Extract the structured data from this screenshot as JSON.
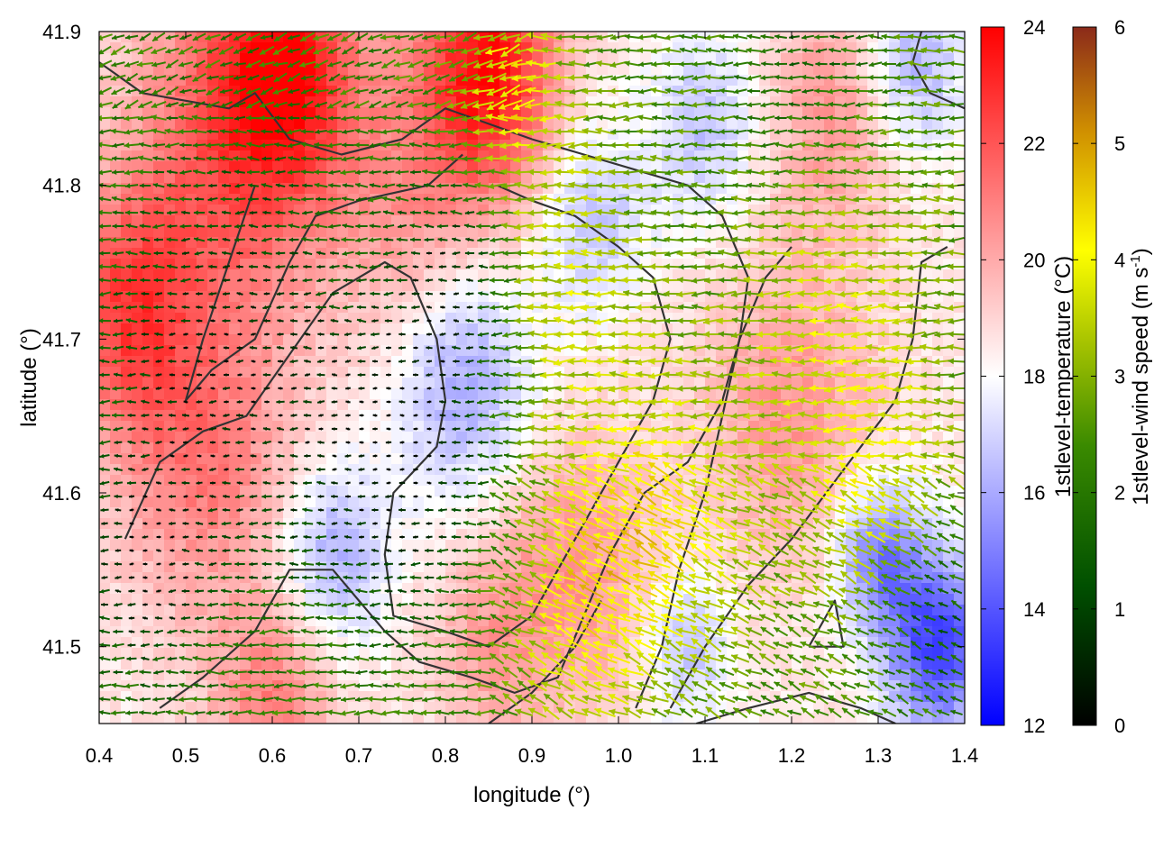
{
  "chart_data": {
    "type": "heatmap",
    "title": "",
    "xlabel": "longitude (°)",
    "ylabel": "latitude (°)",
    "xlim": [
      0.4,
      1.4
    ],
    "ylim": [
      41.45,
      41.9
    ],
    "x_ticks": [
      "0.4",
      "0.5",
      "0.6",
      "0.7",
      "0.8",
      "0.9",
      "1.0",
      "1.1",
      "1.2",
      "1.3",
      "1.4"
    ],
    "y_ticks": [
      "41.5",
      "41.6",
      "41.7",
      "41.8",
      "41.9"
    ],
    "temperature_colorbar": {
      "label": "1stlevel-temperature (°C)",
      "range": [
        12,
        24
      ],
      "ticks": [
        "12",
        "14",
        "16",
        "18",
        "20",
        "22",
        "24"
      ],
      "colors": [
        "#0000ff",
        "#ffffff",
        "#ff0000"
      ]
    },
    "wind_colorbar": {
      "label_prefix": "1stlevel-wind speed (m s",
      "label_exp": "-1",
      "label_suffix": ")",
      "range": [
        0,
        6
      ],
      "ticks": [
        "0",
        "1",
        "2",
        "3",
        "4",
        "5",
        "6"
      ],
      "colors": [
        "#000000",
        "#006400",
        "#90b000",
        "#ffff00",
        "#c88000",
        "#902020"
      ]
    },
    "grid": false,
    "legend": "right",
    "temperature_anomalies": [
      {
        "lon": 0.56,
        "lat": 41.83,
        "temp": 22.0,
        "r": 0.12
      },
      {
        "lon": 0.43,
        "lat": 41.72,
        "temp": 22.0,
        "r": 0.08
      },
      {
        "lon": 0.85,
        "lat": 41.88,
        "temp": 23.5,
        "r": 0.08
      },
      {
        "lon": 0.62,
        "lat": 41.88,
        "temp": 22.0,
        "r": 0.08
      },
      {
        "lon": 0.52,
        "lat": 41.62,
        "temp": 21.0,
        "r": 0.1
      },
      {
        "lon": 0.6,
        "lat": 41.46,
        "temp": 21.0,
        "r": 0.07
      },
      {
        "lon": 0.78,
        "lat": 41.78,
        "temp": 20.5,
        "r": 0.1
      },
      {
        "lon": 1.25,
        "lat": 41.85,
        "temp": 20.5,
        "r": 0.08
      },
      {
        "lon": 1.2,
        "lat": 41.65,
        "temp": 20.5,
        "r": 0.1
      },
      {
        "lon": 0.95,
        "lat": 41.55,
        "temp": 20.5,
        "r": 0.09
      },
      {
        "lon": 0.85,
        "lat": 41.5,
        "temp": 20.0,
        "r": 0.07
      },
      {
        "lon": 0.82,
        "lat": 41.68,
        "temp": 15.5,
        "r": 0.08
      },
      {
        "lon": 0.67,
        "lat": 41.56,
        "temp": 16.0,
        "r": 0.06
      },
      {
        "lon": 0.97,
        "lat": 41.78,
        "temp": 16.5,
        "r": 0.06
      },
      {
        "lon": 1.1,
        "lat": 41.84,
        "temp": 16.5,
        "r": 0.06
      },
      {
        "lon": 1.34,
        "lat": 41.88,
        "temp": 16.0,
        "r": 0.06
      },
      {
        "lon": 1.37,
        "lat": 41.5,
        "temp": 13.5,
        "r": 0.06
      },
      {
        "lon": 1.3,
        "lat": 41.56,
        "temp": 15.0,
        "r": 0.05
      },
      {
        "lon": 1.08,
        "lat": 41.5,
        "temp": 16.5,
        "r": 0.05
      }
    ],
    "wind_anomalies": [
      {
        "lon": 0.92,
        "lat": 41.74,
        "speed": 3.8,
        "r": 0.1
      },
      {
        "lon": 1.05,
        "lat": 41.58,
        "speed": 4.2,
        "r": 0.1
      },
      {
        "lon": 0.88,
        "lat": 41.86,
        "speed": 4.0,
        "r": 0.06
      },
      {
        "lon": 1.25,
        "lat": 41.72,
        "speed": 3.5,
        "r": 0.12
      },
      {
        "lon": 1.3,
        "lat": 41.6,
        "speed": 3.5,
        "r": 0.1
      },
      {
        "lon": 0.95,
        "lat": 41.52,
        "speed": 3.8,
        "r": 0.08
      },
      {
        "lon": 0.55,
        "lat": 41.68,
        "speed": 0.4,
        "r": 0.14
      },
      {
        "lon": 0.75,
        "lat": 41.62,
        "speed": 0.3,
        "r": 0.1
      },
      {
        "lon": 0.82,
        "lat": 41.74,
        "speed": 0.6,
        "r": 0.08
      },
      {
        "lon": 0.45,
        "lat": 41.55,
        "speed": 0.6,
        "r": 0.07
      },
      {
        "lon": 1.22,
        "lat": 41.88,
        "speed": 1.5,
        "r": 0.08
      },
      {
        "lon": 1.36,
        "lat": 41.52,
        "speed": 1.0,
        "r": 0.06
      }
    ],
    "coastline_paths": [
      [
        [
          0.4,
          41.88
        ],
        [
          0.45,
          41.86
        ],
        [
          0.55,
          41.85
        ],
        [
          0.58,
          41.86
        ],
        [
          0.62,
          41.83
        ],
        [
          0.68,
          41.82
        ],
        [
          0.75,
          41.83
        ],
        [
          0.8,
          41.85
        ],
        [
          0.85,
          41.84
        ],
        [
          0.9,
          41.83
        ],
        [
          0.96,
          41.82
        ],
        [
          1.02,
          41.81
        ],
        [
          1.08,
          41.8
        ],
        [
          1.12,
          41.78
        ],
        [
          1.15,
          41.74
        ],
        [
          1.14,
          41.7
        ],
        [
          1.12,
          41.65
        ],
        [
          1.1,
          41.6
        ],
        [
          1.07,
          41.55
        ],
        [
          1.05,
          41.5
        ],
        [
          1.02,
          41.46
        ]
      ],
      [
        [
          0.58,
          41.8
        ],
        [
          0.55,
          41.75
        ],
        [
          0.52,
          41.7
        ],
        [
          0.5,
          41.66
        ],
        [
          0.53,
          41.68
        ],
        [
          0.58,
          41.7
        ],
        [
          0.62,
          41.75
        ],
        [
          0.65,
          41.78
        ],
        [
          0.7,
          41.79
        ],
        [
          0.78,
          41.8
        ],
        [
          0.82,
          41.82
        ]
      ],
      [
        [
          0.43,
          41.57
        ],
        [
          0.47,
          41.62
        ],
        [
          0.52,
          41.64
        ],
        [
          0.57,
          41.65
        ],
        [
          0.62,
          41.69
        ],
        [
          0.67,
          41.73
        ],
        [
          0.73,
          41.75
        ],
        [
          0.76,
          41.74
        ],
        [
          0.79,
          41.7
        ],
        [
          0.8,
          41.66
        ],
        [
          0.79,
          41.63
        ],
        [
          0.74,
          41.6
        ],
        [
          0.73,
          41.56
        ],
        [
          0.74,
          41.52
        ],
        [
          0.8,
          41.51
        ],
        [
          0.85,
          41.5
        ],
        [
          0.9,
          41.52
        ],
        [
          0.95,
          41.57
        ],
        [
          1.0,
          41.62
        ],
        [
          1.04,
          41.66
        ],
        [
          1.06,
          41.7
        ],
        [
          1.04,
          41.74
        ],
        [
          1.0,
          41.76
        ],
        [
          0.95,
          41.78
        ],
        [
          0.9,
          41.79
        ],
        [
          0.86,
          41.8
        ]
      ],
      [
        [
          0.47,
          41.46
        ],
        [
          0.52,
          41.48
        ],
        [
          0.58,
          41.51
        ],
        [
          0.62,
          41.55
        ],
        [
          0.67,
          41.55
        ],
        [
          0.7,
          41.53
        ],
        [
          0.73,
          41.51
        ],
        [
          0.77,
          41.49
        ],
        [
          0.83,
          41.48
        ],
        [
          0.88,
          41.47
        ],
        [
          0.93,
          41.48
        ],
        [
          0.96,
          41.52
        ],
        [
          0.99,
          41.56
        ],
        [
          1.03,
          41.6
        ],
        [
          1.08,
          41.62
        ],
        [
          1.12,
          41.66
        ],
        [
          1.14,
          41.7
        ],
        [
          1.17,
          41.74
        ],
        [
          1.2,
          41.76
        ]
      ],
      [
        [
          1.06,
          41.46
        ],
        [
          1.1,
          41.5
        ],
        [
          1.15,
          41.54
        ],
        [
          1.2,
          41.57
        ],
        [
          1.24,
          41.6
        ],
        [
          1.28,
          41.63
        ],
        [
          1.32,
          41.66
        ],
        [
          1.34,
          41.7
        ],
        [
          1.35,
          41.75
        ],
        [
          1.38,
          41.76
        ]
      ],
      [
        [
          0.85,
          41.45
        ],
        [
          0.9,
          41.47
        ],
        [
          0.95,
          41.5
        ],
        [
          0.98,
          41.53
        ]
      ],
      [
        [
          1.09,
          41.45
        ],
        [
          1.15,
          41.46
        ],
        [
          1.22,
          41.47
        ],
        [
          1.28,
          41.46
        ],
        [
          1.32,
          41.45
        ]
      ],
      [
        [
          1.22,
          41.5
        ],
        [
          1.25,
          41.53
        ],
        [
          1.26,
          41.5
        ],
        [
          1.22,
          41.5
        ]
      ],
      [
        [
          1.35,
          41.9
        ],
        [
          1.34,
          41.88
        ],
        [
          1.36,
          41.86
        ],
        [
          1.4,
          41.85
        ]
      ]
    ]
  }
}
